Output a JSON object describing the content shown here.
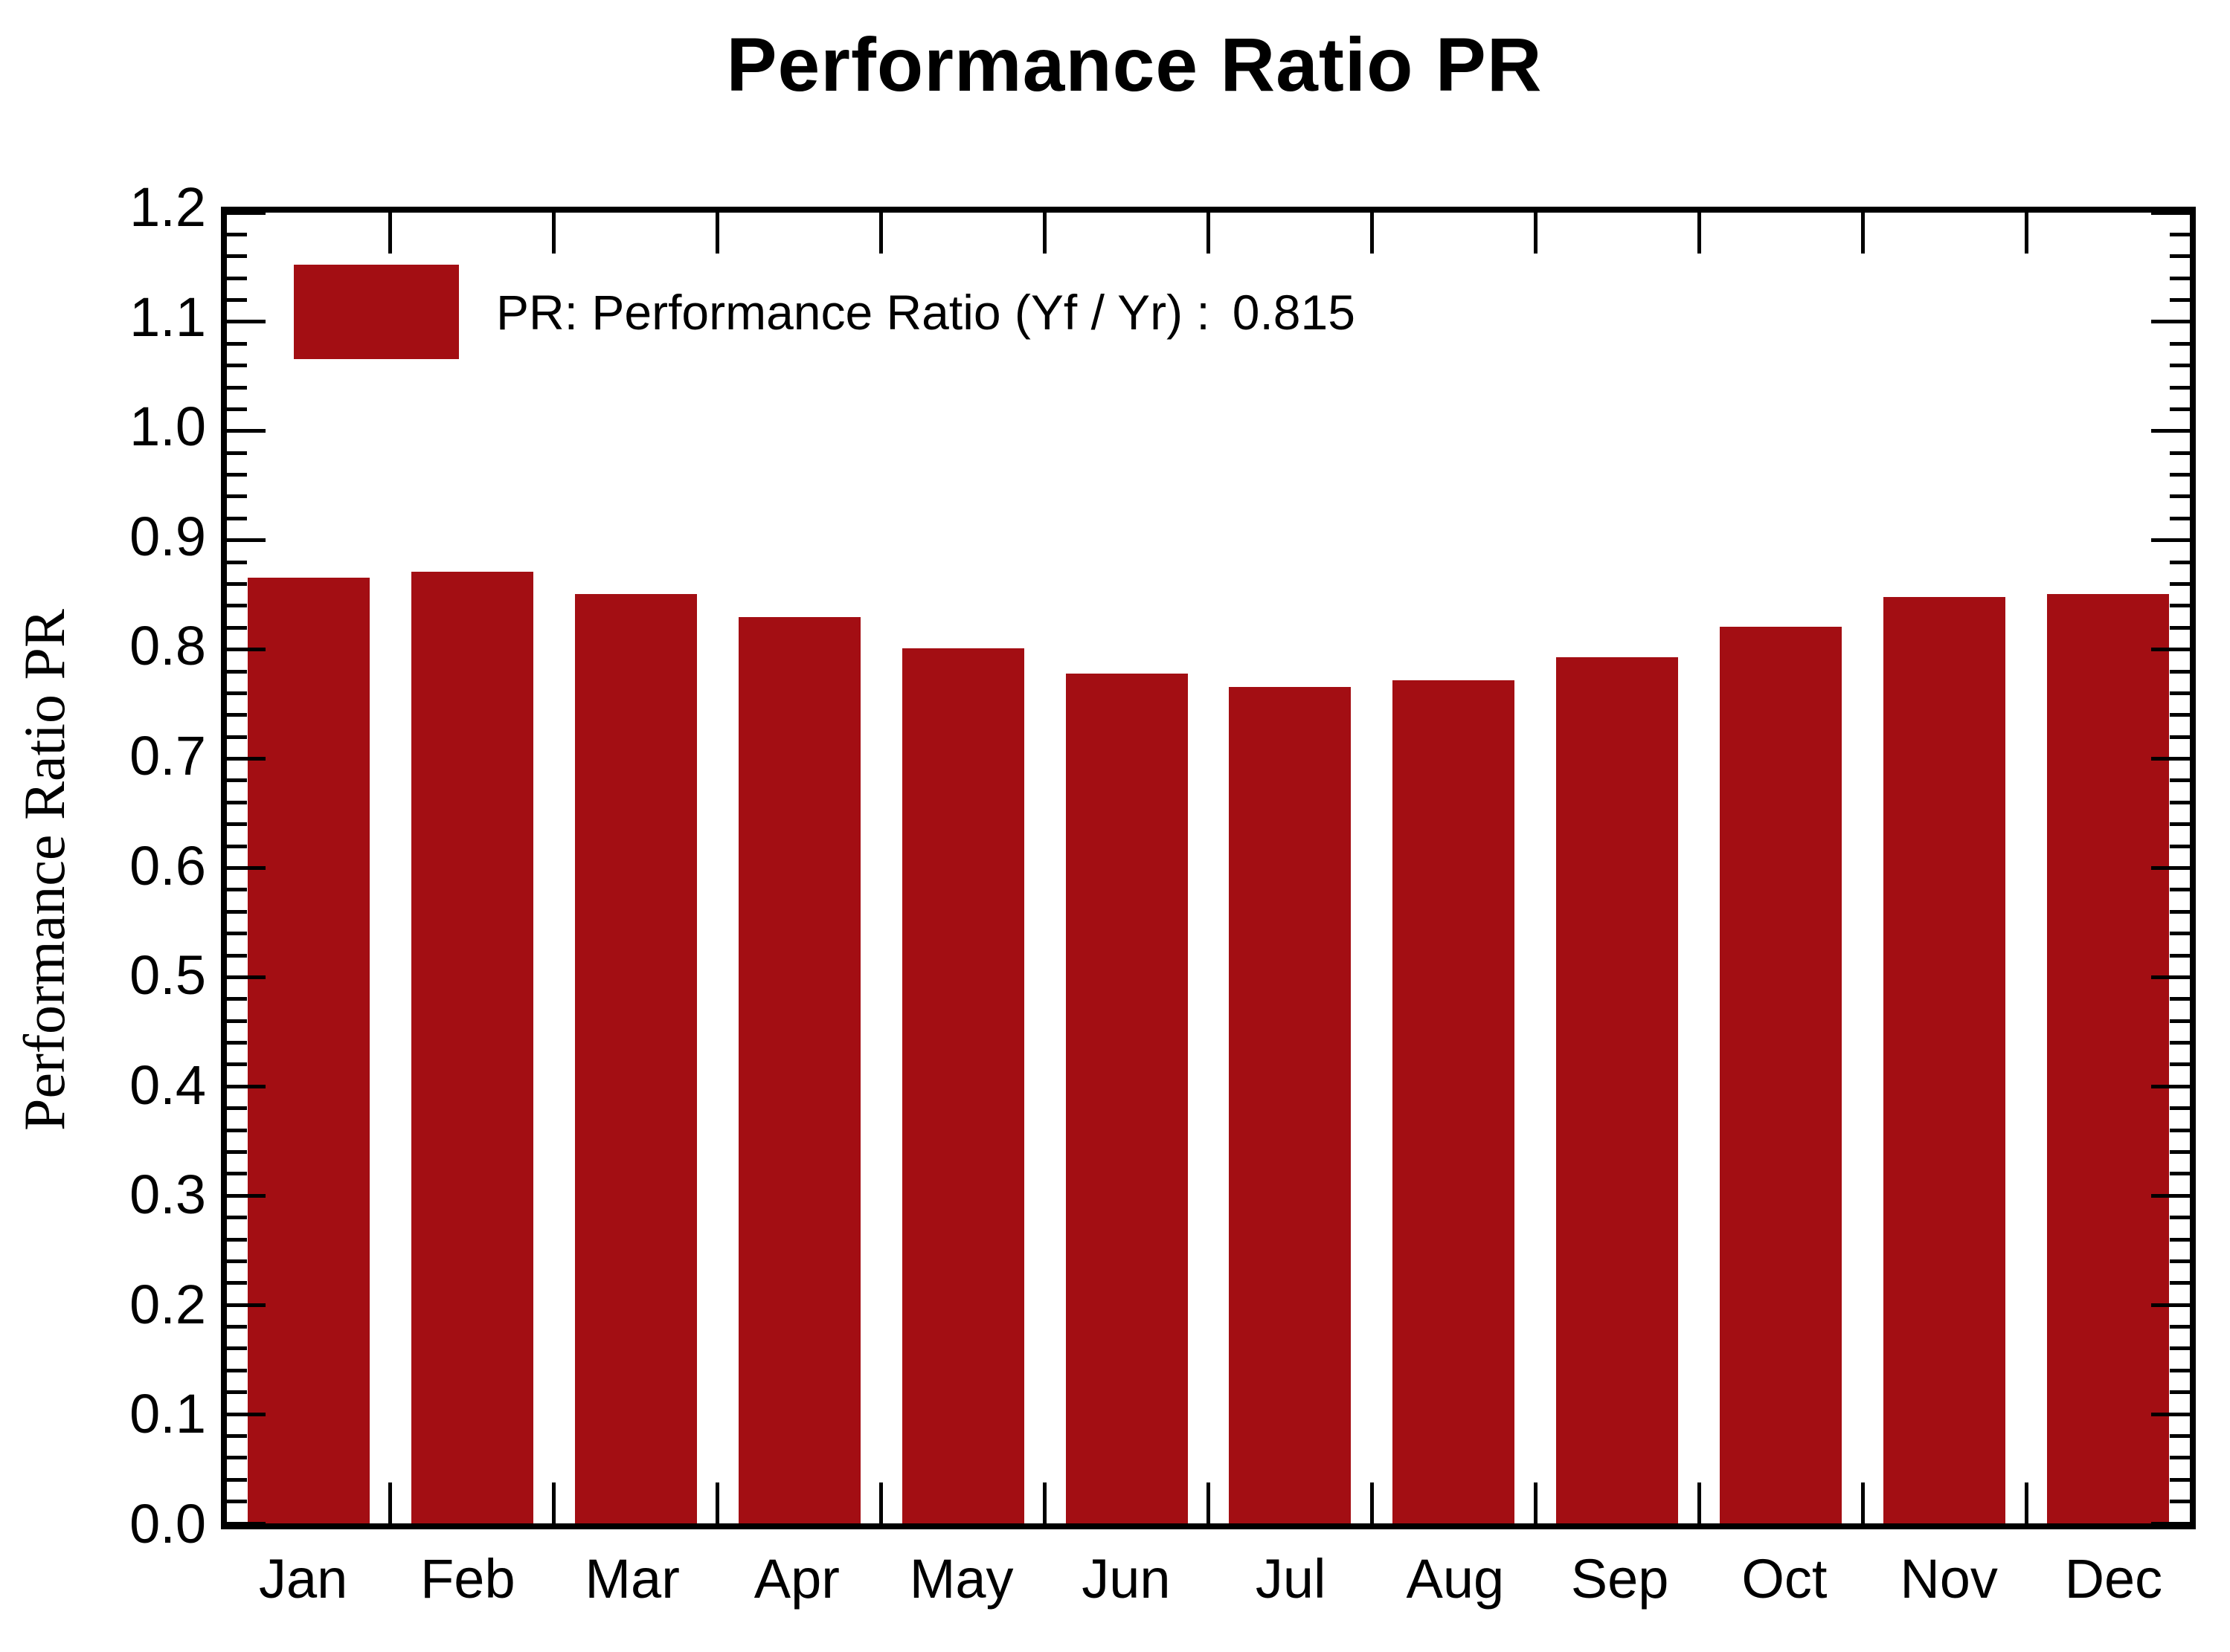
{
  "chart_data": {
    "type": "bar",
    "title": "Performance Ratio PR",
    "ylabel": "Performance Ratio PR",
    "xlabel": "",
    "categories": [
      "Jan",
      "Feb",
      "Mar",
      "Apr",
      "May",
      "Jun",
      "Jul",
      "Aug",
      "Sep",
      "Oct",
      "Nov",
      "Dec"
    ],
    "values": [
      0.866,
      0.871,
      0.851,
      0.83,
      0.801,
      0.778,
      0.766,
      0.772,
      0.793,
      0.821,
      0.848,
      0.851
    ],
    "ylim": [
      0.0,
      1.2
    ],
    "ytick_step": 0.1,
    "yminor_step": 0.02,
    "ytick_labels": [
      "0.0",
      "0.1",
      "0.2",
      "0.3",
      "0.4",
      "0.5",
      "0.6",
      "0.7",
      "0.8",
      "0.9",
      "1.0",
      "1.1",
      "1.2"
    ],
    "grid": false,
    "legend_position": "top-left-inside",
    "legend": {
      "label": "PR: Performance Ratio (Yf / Yr) :",
      "value": "0.815"
    },
    "bar_color": "#A30E13",
    "axis_color": "#000000",
    "background_color": "#FFFFFF"
  }
}
